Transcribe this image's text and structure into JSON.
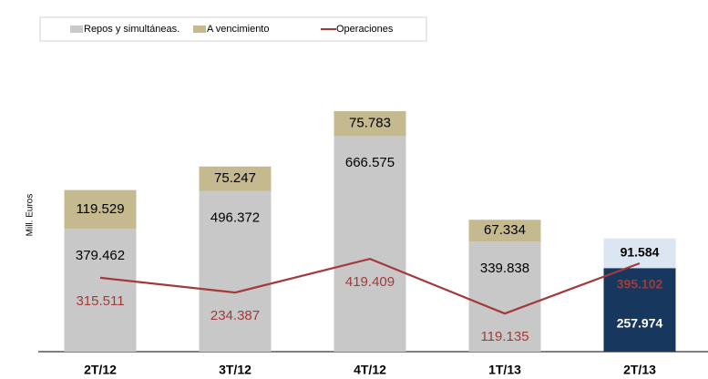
{
  "chart_data": {
    "type": "stacked_bar_line",
    "y_axis_label": "Mill. Euros",
    "categories": [
      "2T/12",
      "3T/12",
      "4T/12",
      "1T/13",
      "2T/13"
    ],
    "series": [
      {
        "name": "Repos y simultáneas.",
        "color": "#c8c8c8",
        "colors": [
          "#c8c8c8",
          "#c8c8c8",
          "#c8c8c8",
          "#c8c8c8",
          "#17375e"
        ],
        "values": [
          379462,
          496372,
          666575,
          339838,
          257974
        ],
        "value_labels": [
          "379.462",
          "496.372",
          "666.575",
          "339.838",
          "257.974"
        ]
      },
      {
        "name": "A vencimiento",
        "color": "#c4b98f",
        "colors": [
          "#c4b98f",
          "#c4b98f",
          "#c4b98f",
          "#c4b98f",
          "#dce6f2"
        ],
        "values": [
          119529,
          75247,
          75783,
          67334,
          91584
        ],
        "value_labels": [
          "119.529",
          "75.247",
          "75.783",
          "67.334",
          "91.584"
        ]
      },
      {
        "name": "Operaciones",
        "color": "#a33a3a",
        "type": "line",
        "axis": "y2",
        "values": [
          315511,
          234387,
          419409,
          119135,
          395102
        ],
        "value_labels": [
          "315.511",
          "234.387",
          "419.409",
          "119.135",
          "395.102"
        ]
      }
    ],
    "ylim": [
      0,
      900000
    ],
    "y2lim": [
      -90000,
      1510000
    ]
  }
}
